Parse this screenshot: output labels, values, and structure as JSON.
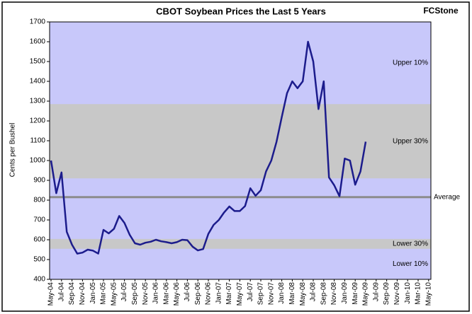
{
  "chart_data": {
    "type": "line",
    "title": "CBOT Soybean Prices the Last 5 Years",
    "brand": "FCStone",
    "y_label": "Cents per Bushel",
    "ylim": [
      400,
      1700
    ],
    "yticks": [
      400,
      500,
      600,
      700,
      800,
      900,
      1000,
      1100,
      1200,
      1300,
      1400,
      1500,
      1600,
      1700
    ],
    "categories": [
      "May-04",
      "Jul-04",
      "Sep-04",
      "Nov-04",
      "Jan-05",
      "Mar-05",
      "May-05",
      "Jul-05",
      "Sep-05",
      "Nov-05",
      "Jan-06",
      "Mar-06",
      "May-06",
      "Jul-06",
      "Sep-06",
      "Nov-06",
      "Jan-07",
      "Mar-07",
      "May-07",
      "Jul-07",
      "Sep-07",
      "Nov-07",
      "Jan-08",
      "Mar-08",
      "May-08",
      "Jul-08",
      "Sep-08",
      "Nov-08",
      "Jan-09",
      "Mar-09",
      "May-09",
      "Jul-09",
      "Sep-09",
      "Nov-09",
      "Jan-10",
      "Mar-10",
      "May-10"
    ],
    "plot_color": "#c8c8fa",
    "bands": [
      {
        "label": "Upper 10%",
        "from": 1285,
        "to": 1700,
        "color": "#c8c8fa"
      },
      {
        "label": "Upper 30%",
        "from": 910,
        "to": 1285,
        "color": "#c8c8c8"
      },
      {
        "label": "Lower 30%",
        "from": 554,
        "to": 604,
        "color": "#c8c8c8"
      },
      {
        "label": "Lower 10%",
        "from": 400,
        "to": 554,
        "color": "#c8c8fa"
      }
    ],
    "average": {
      "label": "Average",
      "value": 815,
      "color": "#8c8c8c"
    },
    "series": [
      {
        "name": "CBOT Soybean",
        "color": "#1c1c8c",
        "x": [
          "May-04",
          "Jun-04",
          "Jul-04",
          "Aug-04",
          "Sep-04",
          "Oct-04",
          "Nov-04",
          "Dec-04",
          "Jan-05",
          "Feb-05",
          "Mar-05",
          "Apr-05",
          "May-05",
          "Jun-05",
          "Jul-05",
          "Aug-05",
          "Sep-05",
          "Oct-05",
          "Nov-05",
          "Dec-05",
          "Jan-06",
          "Feb-06",
          "Mar-06",
          "Apr-06",
          "May-06",
          "Jun-06",
          "Jul-06",
          "Aug-06",
          "Sep-06",
          "Oct-06",
          "Nov-06",
          "Dec-06",
          "Jan-07",
          "Feb-07",
          "Mar-07",
          "Apr-07",
          "May-07",
          "Jun-07",
          "Jul-07",
          "Aug-07",
          "Sep-07",
          "Oct-07",
          "Nov-07",
          "Dec-07",
          "Jan-08",
          "Feb-08",
          "Mar-08",
          "Apr-08",
          "May-08",
          "Jun-08",
          "Jul-08",
          "Aug-08",
          "Sep-08",
          "Oct-08",
          "Nov-08",
          "Dec-08",
          "Jan-09",
          "Feb-09",
          "Mar-09",
          "Apr-09",
          "May-09"
        ],
        "values": [
          1000,
          835,
          940,
          640,
          575,
          530,
          535,
          550,
          545,
          530,
          650,
          632,
          655,
          720,
          685,
          625,
          582,
          575,
          585,
          590,
          600,
          592,
          588,
          582,
          588,
          600,
          598,
          565,
          546,
          553,
          630,
          675,
          700,
          738,
          768,
          745,
          745,
          770,
          860,
          822,
          850,
          945,
          1000,
          1095,
          1220,
          1340,
          1400,
          1365,
          1400,
          1600,
          1500,
          1260,
          1400,
          915,
          875,
          820,
          1010,
          1000,
          878,
          945,
          1095
        ]
      }
    ]
  }
}
